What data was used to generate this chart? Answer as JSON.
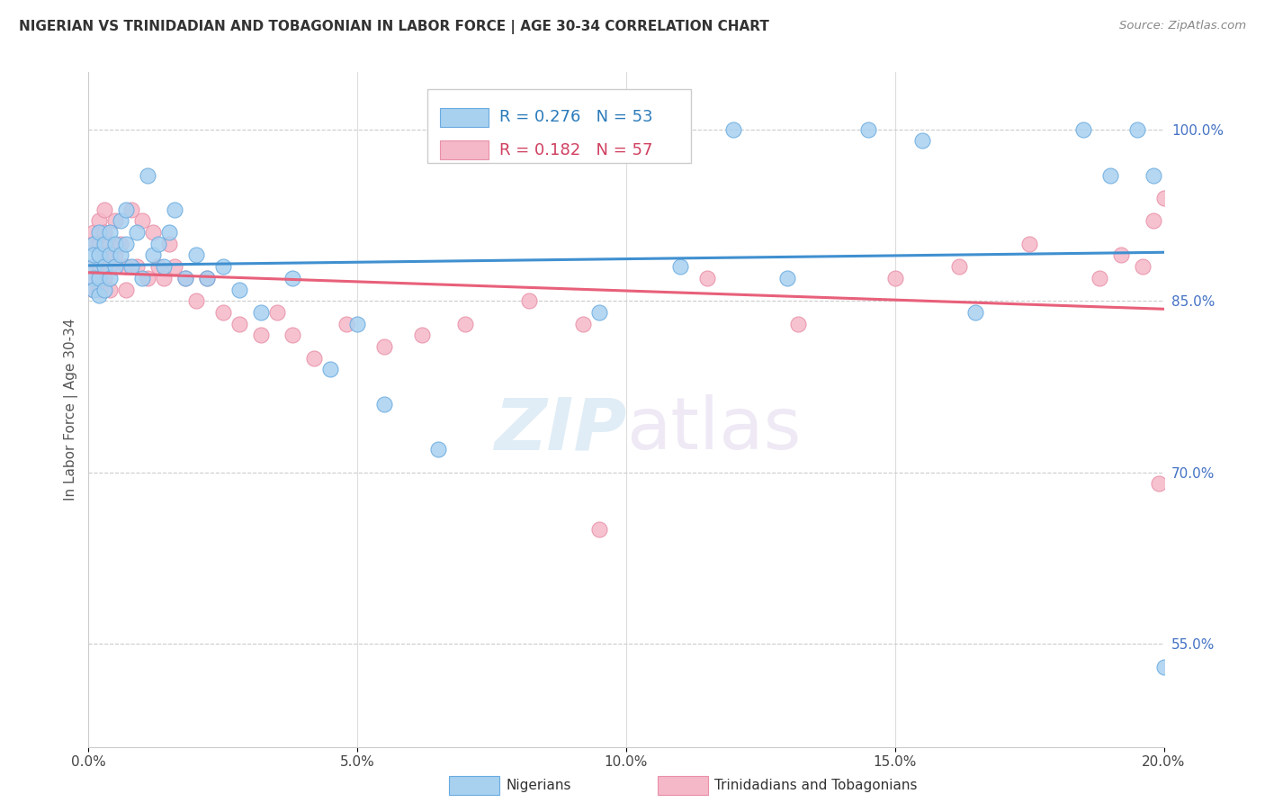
{
  "title": "NIGERIAN VS TRINIDADIAN AND TOBAGONIAN IN LABOR FORCE | AGE 30-34 CORRELATION CHART",
  "source": "Source: ZipAtlas.com",
  "xlabel_ticks": [
    "0.0%",
    "",
    "5.0%",
    "",
    "10.0%",
    "",
    "15.0%",
    "",
    "20.0%"
  ],
  "xlabel_tick_vals": [
    0.0,
    0.025,
    0.05,
    0.075,
    0.1,
    0.125,
    0.15,
    0.175,
    0.2
  ],
  "ylabel": "In Labor Force | Age 30-34",
  "right_ytick_labels": [
    "100.0%",
    "85.0%",
    "70.0%",
    "55.0%"
  ],
  "right_ytick_vals": [
    1.0,
    0.85,
    0.7,
    0.55
  ],
  "xmin": 0.0,
  "xmax": 0.2,
  "ymin": 0.46,
  "ymax": 1.05,
  "legend_blue_r": "R = 0.276",
  "legend_blue_n": "N = 53",
  "legend_pink_r": "R = 0.182",
  "legend_pink_n": "N = 57",
  "blue_color": "#a8d1f0",
  "pink_color": "#f5b8c8",
  "blue_line_color": "#4090d0",
  "pink_line_color": "#e8607a",
  "blue_scatter_edge": "#6aabdf",
  "pink_scatter_edge": "#e890a8",
  "blue_x": [
    0.001,
    0.001,
    0.001,
    0.001,
    0.001,
    0.002,
    0.002,
    0.002,
    0.002,
    0.003,
    0.003,
    0.003,
    0.004,
    0.004,
    0.004,
    0.005,
    0.005,
    0.006,
    0.006,
    0.007,
    0.007,
    0.008,
    0.009,
    0.01,
    0.011,
    0.012,
    0.013,
    0.014,
    0.015,
    0.016,
    0.018,
    0.02,
    0.022,
    0.025,
    0.028,
    0.032,
    0.038,
    0.045,
    0.05,
    0.055,
    0.065,
    0.095,
    0.11,
    0.12,
    0.13,
    0.145,
    0.155,
    0.165,
    0.185,
    0.19,
    0.195,
    0.198,
    0.2
  ],
  "blue_y": [
    0.9,
    0.88,
    0.87,
    0.86,
    0.89,
    0.91,
    0.89,
    0.87,
    0.855,
    0.9,
    0.88,
    0.86,
    0.91,
    0.89,
    0.87,
    0.9,
    0.88,
    0.92,
    0.89,
    0.93,
    0.9,
    0.88,
    0.91,
    0.87,
    0.96,
    0.89,
    0.9,
    0.88,
    0.91,
    0.93,
    0.87,
    0.89,
    0.87,
    0.88,
    0.86,
    0.84,
    0.87,
    0.79,
    0.83,
    0.76,
    0.72,
    0.84,
    0.88,
    1.0,
    0.87,
    1.0,
    0.99,
    0.84,
    1.0,
    0.96,
    1.0,
    0.96,
    0.53
  ],
  "pink_x": [
    0.001,
    0.001,
    0.001,
    0.001,
    0.001,
    0.002,
    0.002,
    0.002,
    0.002,
    0.003,
    0.003,
    0.003,
    0.003,
    0.004,
    0.004,
    0.004,
    0.005,
    0.005,
    0.006,
    0.007,
    0.007,
    0.008,
    0.009,
    0.01,
    0.011,
    0.012,
    0.013,
    0.014,
    0.015,
    0.016,
    0.018,
    0.02,
    0.022,
    0.025,
    0.028,
    0.032,
    0.035,
    0.038,
    0.042,
    0.048,
    0.055,
    0.062,
    0.07,
    0.082,
    0.092,
    0.095,
    0.115,
    0.132,
    0.15,
    0.162,
    0.175,
    0.188,
    0.192,
    0.196,
    0.198,
    0.199,
    0.2
  ],
  "pink_y": [
    0.91,
    0.9,
    0.88,
    0.87,
    0.86,
    0.92,
    0.9,
    0.88,
    0.86,
    0.93,
    0.91,
    0.89,
    0.87,
    0.9,
    0.88,
    0.86,
    0.92,
    0.89,
    0.9,
    0.88,
    0.86,
    0.93,
    0.88,
    0.92,
    0.87,
    0.91,
    0.88,
    0.87,
    0.9,
    0.88,
    0.87,
    0.85,
    0.87,
    0.84,
    0.83,
    0.82,
    0.84,
    0.82,
    0.8,
    0.83,
    0.81,
    0.82,
    0.83,
    0.85,
    0.83,
    0.65,
    0.87,
    0.83,
    0.87,
    0.88,
    0.9,
    0.87,
    0.89,
    0.88,
    0.92,
    0.69,
    0.94
  ]
}
